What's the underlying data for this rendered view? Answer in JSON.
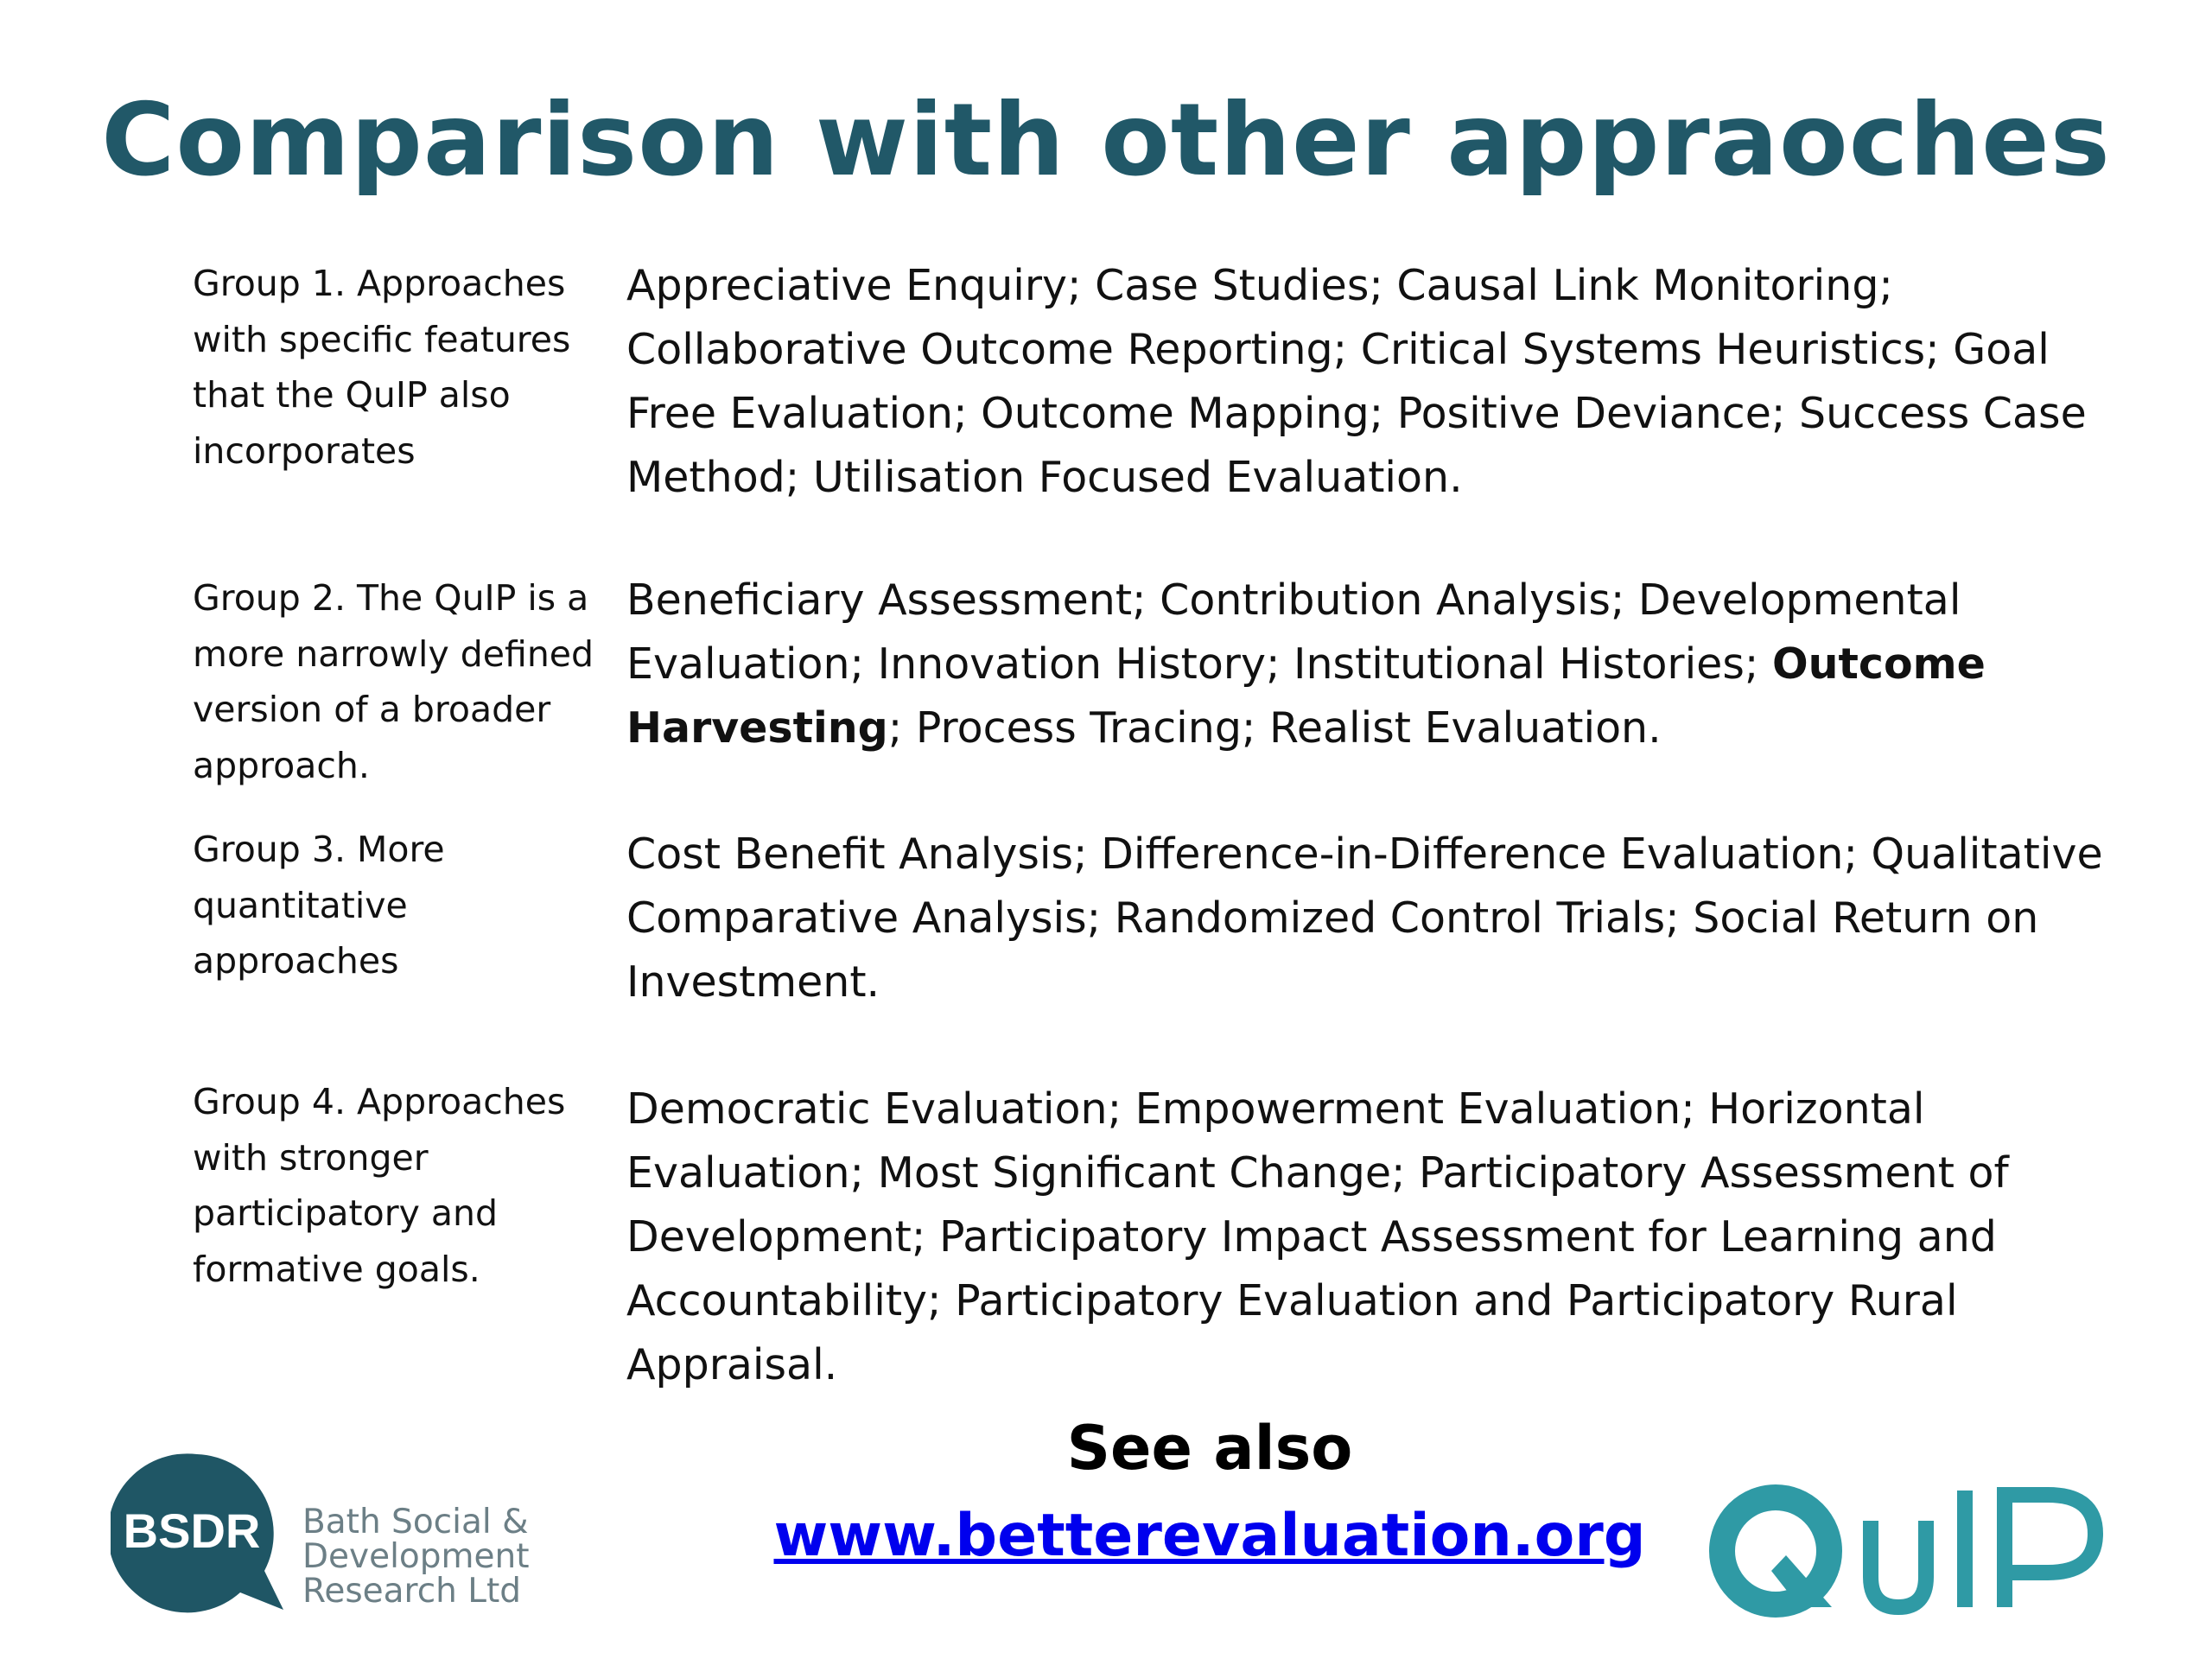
{
  "title": "Comparison with other appraoches",
  "groups": [
    {
      "label": "Group 1. Approaches with specific features that the QuIP also incorporates",
      "text_parts": [
        {
          "text": "Appreciative Enquiry; Case Studies; Causal Link Monitoring; Collaborative Outcome Reporting; Critical Systems Heuristics; Goal Free Evaluation; Outcome Mapping; Positive Deviance; Success Case Method; Utilisation Focused Evaluation.",
          "bold": false
        }
      ]
    },
    {
      "label": "Group 2. The QuIP is a more narrowly defined version of a broader approach.",
      "text_parts": [
        {
          "text": "Beneficiary Assessment; Contribution Analysis; Developmental Evaluation; Innovation History; Institutional Histories; ",
          "bold": false
        },
        {
          "text": "Outcome Harvesting",
          "bold": true
        },
        {
          "text": "; Process Tracing; Realist Evaluation.",
          "bold": false
        }
      ]
    },
    {
      "label": "Group 3. More quantitative approaches",
      "text_parts": [
        {
          "text": "Cost Benefit Analysis; Difference-in-Difference Evaluation; Qualitative Comparative Analysis; Randomized Control Trials; Social Return on Investment.",
          "bold": false
        }
      ]
    },
    {
      "label": "Group 4. Approaches with stronger participatory and formative goals.",
      "text_parts": [
        {
          "text": "Democratic Evaluation; Empowerment Evaluation; Horizontal Evaluation; Most Significant Change; Participatory Assessment of Development; Participatory Impact Assessment for Learning and Accountability; Participatory Evaluation and Participatory Rural Appraisal.",
          "bold": false
        }
      ]
    }
  ],
  "see_also": "See also",
  "link": "www.betterevaluation.org",
  "bsdr": {
    "mark": "BSDR",
    "name_lines": [
      "Bath Social &",
      "Development",
      "Research Ltd"
    ]
  },
  "quip_logo": "QuIP",
  "colors": {
    "title": "#215868",
    "bsdr_mark": "#1f5665",
    "bsdr_text": "#6c7f86",
    "quip": "#2f9aa5",
    "link": "#0000ee"
  }
}
